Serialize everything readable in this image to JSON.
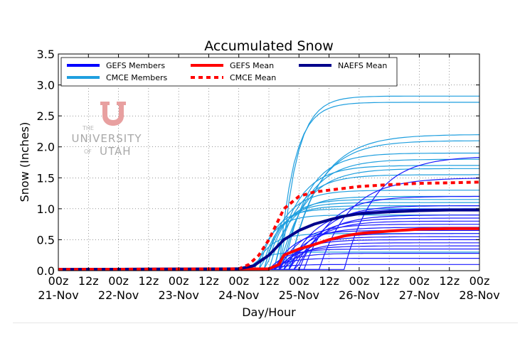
{
  "chart_data": {
    "type": "line",
    "title": "Accumulated Snow",
    "xlabel": "Day/Hour",
    "ylabel": "Snow (Inches)",
    "xlim": [
      0,
      168
    ],
    "ylim": [
      0,
      3.5
    ],
    "grid": true,
    "legend_position": "top",
    "x_ticks": [
      {
        "hour": 0,
        "line1": "00z",
        "line2": "21-Nov"
      },
      {
        "hour": 12,
        "line1": "12z",
        "line2": ""
      },
      {
        "hour": 24,
        "line1": "00z",
        "line2": "22-Nov"
      },
      {
        "hour": 36,
        "line1": "12z",
        "line2": ""
      },
      {
        "hour": 48,
        "line1": "00z",
        "line2": "23-Nov"
      },
      {
        "hour": 60,
        "line1": "12z",
        "line2": ""
      },
      {
        "hour": 72,
        "line1": "00z",
        "line2": "24-Nov"
      },
      {
        "hour": 84,
        "line1": "12z",
        "line2": ""
      },
      {
        "hour": 96,
        "line1": "00z",
        "line2": "25-Nov"
      },
      {
        "hour": 108,
        "line1": "12z",
        "line2": ""
      },
      {
        "hour": 120,
        "line1": "00z",
        "line2": "26-Nov"
      },
      {
        "hour": 132,
        "line1": "12z",
        "line2": ""
      },
      {
        "hour": 144,
        "line1": "00z",
        "line2": "27-Nov"
      },
      {
        "hour": 156,
        "line1": "12z",
        "line2": ""
      },
      {
        "hour": 168,
        "line1": "00z",
        "line2": "28-Nov"
      }
    ],
    "y_ticks": [
      "0.0",
      "0.5",
      "1.0",
      "1.5",
      "2.0",
      "2.5",
      "3.0",
      "3.5"
    ],
    "y_tick_values": [
      0,
      0.5,
      1.0,
      1.5,
      2.0,
      2.5,
      3.0,
      3.5
    ],
    "legend": [
      {
        "label": "GEFS Members",
        "color": "#0000ff",
        "style": "solid"
      },
      {
        "label": "GEFS Mean",
        "color": "#ff0000",
        "style": "solid"
      },
      {
        "label": "NAEFS Mean",
        "color": "#00008b",
        "style": "solid"
      },
      {
        "label": "CMCE Members",
        "color": "#1f9fdf",
        "style": "solid"
      },
      {
        "label": "CMCE Mean",
        "color": "#ff0000",
        "style": "dotted"
      }
    ],
    "members": {
      "gefs": {
        "color": "#1a1aff",
        "members": [
          {
            "onset": 84,
            "rate": 6,
            "final": 0.1
          },
          {
            "onset": 85,
            "rate": 6,
            "final": 0.2
          },
          {
            "onset": 86,
            "rate": 7,
            "final": 0.28
          },
          {
            "onset": 84,
            "rate": 7,
            "final": 0.35
          },
          {
            "onset": 87,
            "rate": 8,
            "final": 0.4
          },
          {
            "onset": 90,
            "rate": 8,
            "final": 0.45
          },
          {
            "onset": 88,
            "rate": 8,
            "final": 0.5
          },
          {
            "onset": 89,
            "rate": 9,
            "final": 0.55
          },
          {
            "onset": 92,
            "rate": 9,
            "final": 0.6
          },
          {
            "onset": 86,
            "rate": 8,
            "final": 0.65
          },
          {
            "onset": 90,
            "rate": 9,
            "final": 0.7
          },
          {
            "onset": 88,
            "rate": 9,
            "final": 0.75
          },
          {
            "onset": 94,
            "rate": 9,
            "final": 0.8
          },
          {
            "onset": 92,
            "rate": 10,
            "final": 0.85
          },
          {
            "onset": 95,
            "rate": 10,
            "final": 0.9
          },
          {
            "onset": 92,
            "rate": 10,
            "final": 1.0
          },
          {
            "onset": 96,
            "rate": 10,
            "final": 1.05
          },
          {
            "onset": 98,
            "rate": 10,
            "final": 1.2
          },
          {
            "onset": 104,
            "rate": 12,
            "final": 1.5
          },
          {
            "onset": 114,
            "rate": 12,
            "final": 1.85
          }
        ]
      },
      "cmce": {
        "color": "#1f9fdf",
        "members": [
          {
            "onset": 76,
            "rate": 5,
            "final": 0.3
          },
          {
            "onset": 78,
            "rate": 6,
            "final": 0.6
          },
          {
            "onset": 79,
            "rate": 6,
            "final": 0.9
          },
          {
            "onset": 80,
            "rate": 6,
            "final": 1.0
          },
          {
            "onset": 81,
            "rate": 7,
            "final": 1.05
          },
          {
            "onset": 82,
            "rate": 7,
            "final": 1.1
          },
          {
            "onset": 83,
            "rate": 7,
            "final": 1.15
          },
          {
            "onset": 84,
            "rate": 8,
            "final": 1.2
          },
          {
            "onset": 82,
            "rate": 8,
            "final": 1.3
          },
          {
            "onset": 86,
            "rate": 9,
            "final": 1.55
          },
          {
            "onset": 88,
            "rate": 10,
            "final": 1.65
          },
          {
            "onset": 86,
            "rate": 9,
            "final": 1.7
          },
          {
            "onset": 89,
            "rate": 10,
            "final": 1.8
          },
          {
            "onset": 90,
            "rate": 9,
            "final": 1.9
          },
          {
            "onset": 92,
            "rate": 11,
            "final": 2.1
          },
          {
            "onset": 92,
            "rate": 12,
            "final": 2.2
          },
          {
            "onset": 88,
            "rate": 6,
            "final": 2.72
          },
          {
            "onset": 89,
            "rate": 6,
            "final": 2.82
          }
        ]
      }
    },
    "means": {
      "naefs": {
        "color": "#00008b",
        "x": [
          0,
          72,
          78,
          84,
          90,
          96,
          102,
          108,
          114,
          120,
          132,
          144,
          156,
          168
        ],
        "y": [
          0.02,
          0.03,
          0.08,
          0.25,
          0.5,
          0.65,
          0.75,
          0.82,
          0.88,
          0.92,
          0.95,
          0.97,
          0.98,
          0.98
        ]
      },
      "gefs": {
        "color": "#ff0000",
        "x": [
          0,
          84,
          88,
          90,
          96,
          102,
          108,
          114,
          120,
          132,
          144,
          156,
          168
        ],
        "y": [
          0.02,
          0.03,
          0.1,
          0.25,
          0.35,
          0.42,
          0.5,
          0.56,
          0.6,
          0.64,
          0.67,
          0.68,
          0.68
        ]
      },
      "cmce": {
        "color": "#ff0000",
        "x": [
          0,
          72,
          76,
          80,
          84,
          90,
          96,
          102,
          108,
          114,
          120,
          132,
          144,
          156,
          168
        ],
        "y": [
          0.02,
          0.03,
          0.1,
          0.25,
          0.5,
          1.0,
          1.2,
          1.27,
          1.3,
          1.33,
          1.36,
          1.39,
          1.41,
          1.42,
          1.43
        ]
      }
    }
  },
  "watermark": {
    "line1": "THE",
    "line2": "UNIVERSITY",
    "line3_left": "OF",
    "line3_right": "UTAH",
    "logo_color": "#e8a0a0"
  }
}
